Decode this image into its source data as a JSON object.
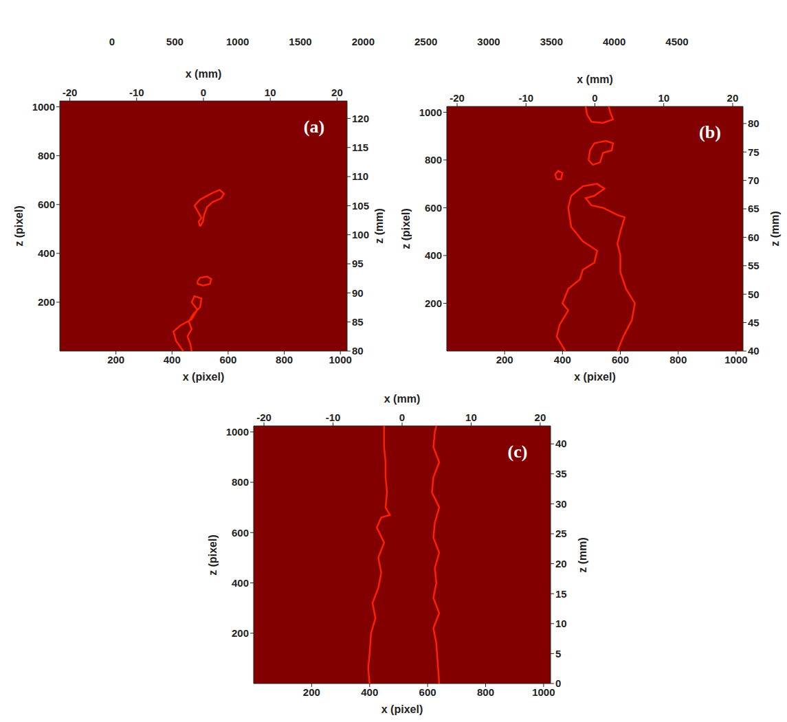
{
  "chart_data": [
    {
      "type": "colorbar",
      "xlim": [
        0,
        4500
      ],
      "xticks": [
        0,
        500,
        1000,
        1500,
        2000,
        2500,
        3000,
        3500,
        4000,
        4500
      ]
    },
    {
      "type": "heatmap",
      "label": "(a)",
      "background": 860,
      "contour_level": 1900,
      "xlabel": "x (pixel)",
      "x2label": "x (mm)",
      "ylabel": "z (pixel)",
      "y2label": "z (mm)",
      "xlim": [
        0,
        1024
      ],
      "xticks": [
        200,
        400,
        600,
        800,
        1000
      ],
      "x2lim": [
        -21.5,
        21.5
      ],
      "x2ticks": [
        -20,
        -10,
        0,
        10,
        20
      ],
      "ylim": [
        0,
        1024
      ],
      "yticks": [
        200,
        400,
        600,
        800,
        1000
      ],
      "y2lim": [
        80,
        123
      ],
      "y2ticks": [
        80,
        85,
        90,
        95,
        100,
        105,
        110,
        115,
        120
      ],
      "series": [
        {
          "x": [
            440,
            415,
            405,
            430,
            470,
            490,
            470,
            480,
            505,
            500,
            475,
            460,
            470,
            455,
            465,
            470
          ],
          "y": [
            0,
            40,
            80,
            105,
            130,
            170,
            200,
            225,
            215,
            180,
            150,
            120,
            90,
            60,
            30,
            0
          ]
        },
        {
          "x": [
            490,
            500,
            525,
            540,
            535,
            510,
            492,
            490
          ],
          "y": [
            285,
            300,
            305,
            295,
            275,
            268,
            275,
            285
          ]
        },
        {
          "x": [
            500,
            495,
            505,
            495,
            480,
            500,
            540,
            570,
            585,
            575,
            545,
            525,
            515,
            510,
            500
          ],
          "y": [
            510,
            530,
            545,
            565,
            595,
            620,
            645,
            660,
            645,
            625,
            610,
            590,
            560,
            530,
            510
          ]
        }
      ]
    },
    {
      "type": "heatmap",
      "label": "(b)",
      "background": 860,
      "contour_level": 1900,
      "xlabel": "x (pixel)",
      "x2label": "x (mm)",
      "ylabel": "z (pixel)",
      "y2label": "z (mm)",
      "xlim": [
        0,
        1024
      ],
      "xticks": [
        200,
        400,
        600,
        800,
        1000
      ],
      "x2lim": [
        -21.5,
        21.5
      ],
      "x2ticks": [
        -20,
        -10,
        0,
        10,
        20
      ],
      "ylim": [
        0,
        1024
      ],
      "yticks": [
        200,
        400,
        600,
        800,
        1000
      ],
      "y2lim": [
        40,
        83
      ],
      "y2ticks": [
        40,
        45,
        50,
        55,
        60,
        65,
        70,
        75,
        80
      ],
      "series": [
        {
          "x": [
            410,
            380,
            390,
            420,
            400,
            420,
            460,
            470,
            510,
            520,
            470,
            430,
            420,
            430,
            470,
            520,
            545,
            510,
            480,
            500,
            540,
            590,
            615,
            610,
            600,
            590,
            600,
            600,
            620,
            650,
            640,
            610,
            590
          ],
          "y": [
            0,
            60,
            110,
            170,
            200,
            260,
            300,
            340,
            370,
            420,
            460,
            520,
            600,
            650,
            690,
            700,
            680,
            650,
            640,
            610,
            600,
            570,
            560,
            540,
            500,
            450,
            400,
            330,
            260,
            200,
            130,
            60,
            0
          ]
        },
        {
          "x": [
            380,
            375,
            385,
            400,
            395,
            380
          ],
          "y": [
            720,
            740,
            755,
            745,
            720,
            720
          ]
        },
        {
          "x": [
            490,
            495,
            510,
            550,
            575,
            570,
            540,
            530,
            505,
            490
          ],
          "y": [
            800,
            840,
            870,
            880,
            870,
            840,
            830,
            790,
            780,
            800
          ]
        },
        {
          "x": [
            480,
            485,
            500,
            540,
            575,
            565,
            560
          ],
          "y": [
            1024,
            990,
            960,
            955,
            970,
            1000,
            1024
          ]
        }
      ]
    },
    {
      "type": "heatmap",
      "label": "(c)",
      "background": 860,
      "contour_level": 1900,
      "xlabel": "x (pixel)",
      "x2label": "x (mm)",
      "ylabel": "z (pixel)",
      "y2label": "z (mm)",
      "xlim": [
        0,
        1024
      ],
      "xticks": [
        200,
        400,
        600,
        800,
        1000
      ],
      "x2lim": [
        -21.5,
        21.5
      ],
      "x2ticks": [
        -20,
        -10,
        0,
        10,
        20
      ],
      "ylim": [
        0,
        1024
      ],
      "yticks": [
        200,
        400,
        600,
        800,
        1000
      ],
      "y2lim": [
        0,
        43
      ],
      "y2ticks": [
        0,
        5,
        10,
        15,
        20,
        25,
        30,
        35,
        40
      ],
      "series": [
        {
          "x": [
            400,
            395,
            400,
            405,
            420,
            410,
            430,
            440,
            430,
            450,
            425,
            440,
            470,
            455,
            460,
            455,
            455,
            450,
            450
          ],
          "y": [
            0,
            60,
            120,
            200,
            260,
            320,
            380,
            440,
            500,
            560,
            620,
            660,
            670,
            700,
            760,
            820,
            880,
            940,
            1024
          ]
        },
        {
          "x": [
            640,
            635,
            630,
            620,
            640,
            620,
            630,
            625,
            640,
            620,
            625,
            640,
            615,
            620,
            640,
            620,
            625,
            630
          ],
          "y": [
            0,
            80,
            160,
            220,
            280,
            340,
            400,
            460,
            520,
            580,
            640,
            700,
            760,
            820,
            880,
            940,
            1000,
            1024
          ]
        }
      ]
    }
  ]
}
